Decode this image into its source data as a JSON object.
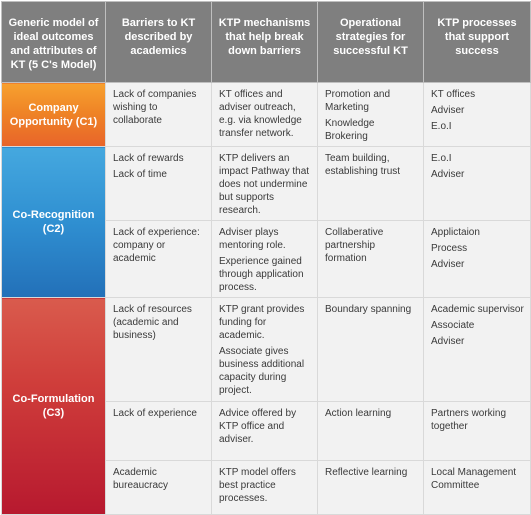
{
  "headers": [
    "Generic model of ideal outcomes and attributes of KT (5 C's Model)",
    "Barriers to KT described by academics",
    "KTP mechanisms that help break down barriers",
    "Operational strategies for successful KT",
    "KTP processes that support success"
  ],
  "groups": [
    {
      "label": "Company Opportunity (C1)",
      "rows": [
        {
          "barriers": [
            "Lack of companies wishing to collaborate"
          ],
          "mechanisms": [
            "KT offices and adviser outreach, e.g. via knowledge transfer network."
          ],
          "strategies": [
            "Promotion and Marketing",
            "Knowledge Brokering"
          ],
          "processes": [
            "KT offices",
            "Adviser",
            "E.o.I"
          ]
        }
      ]
    },
    {
      "label": "Co-Recognition (C2)",
      "rows": [
        {
          "barriers": [
            "Lack of rewards",
            "Lack of time"
          ],
          "mechanisms": [
            "KTP delivers an impact Pathway that does not undermine but supports research."
          ],
          "strategies": [
            "Team building, establishing trust"
          ],
          "processes": [
            "E.o.I",
            "Adviser"
          ]
        },
        {
          "barriers": [
            "Lack of experience: company or academic"
          ],
          "mechanisms": [
            "Adviser plays mentoring role.",
            "Experience gained through application process."
          ],
          "strategies": [
            "Collaberative partnership formation"
          ],
          "processes": [
            "Applictaion",
            "Process",
            "Adviser"
          ]
        }
      ]
    },
    {
      "label": "Co-Formulation (C3)",
      "rows": [
        {
          "barriers": [
            "Lack of resources (academic and business)"
          ],
          "mechanisms": [
            "KTP grant provides funding for academic.",
            "Associate gives business additional capacity during project."
          ],
          "strategies": [
            "Boundary spanning"
          ],
          "processes": [
            "Academic supervisor",
            "Associate",
            "Adviser"
          ]
        },
        {
          "barriers": [
            "Lack of experience"
          ],
          "mechanisms": [
            "Advice offered by KTP office and adviser."
          ],
          "strategies": [
            "Action learning"
          ],
          "processes": [
            "Partners working together"
          ]
        },
        {
          "barriers": [
            "Academic bureaucracy"
          ],
          "mechanisms": [
            "KTP model offers best practice processes."
          ],
          "strategies": [
            "Reflective learning"
          ],
          "processes": [
            "Local Management Committee"
          ]
        }
      ]
    }
  ]
}
